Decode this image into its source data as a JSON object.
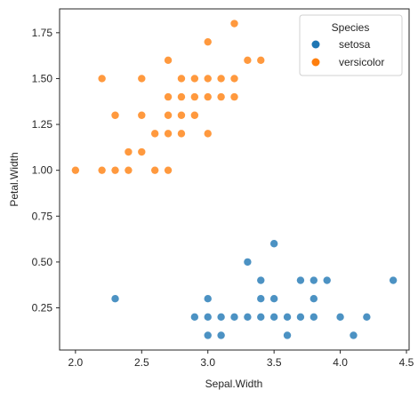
{
  "chart_data": {
    "type": "scatter",
    "xlabel": "Sepal.Width",
    "ylabel": "Petal.Width",
    "xlim": [
      1.88,
      4.52
    ],
    "ylim": [
      0.02,
      1.88
    ],
    "xticks": [
      2.0,
      2.5,
      3.0,
      3.5,
      4.0,
      4.5
    ],
    "xtick_labels": [
      "2.0",
      "2.5",
      "3.0",
      "3.5",
      "4.0",
      "4.5"
    ],
    "yticks": [
      0.25,
      0.5,
      0.75,
      1.0,
      1.25,
      1.5,
      1.75
    ],
    "ytick_labels": [
      "0.25",
      "0.50",
      "0.75",
      "1.00",
      "1.25",
      "1.50",
      "1.75"
    ],
    "grid": false,
    "legend": {
      "title": "Species",
      "placement": "top-right"
    },
    "series": [
      {
        "name": "setosa",
        "color": "#1f77b4",
        "points": [
          [
            2.3,
            0.3
          ],
          [
            2.9,
            0.2
          ],
          [
            3.0,
            0.1
          ],
          [
            3.0,
            0.2
          ],
          [
            3.0,
            0.3
          ],
          [
            3.1,
            0.1
          ],
          [
            3.1,
            0.2
          ],
          [
            3.2,
            0.2
          ],
          [
            3.3,
            0.2
          ],
          [
            3.3,
            0.5
          ],
          [
            3.4,
            0.2
          ],
          [
            3.4,
            0.3
          ],
          [
            3.4,
            0.4
          ],
          [
            3.5,
            0.2
          ],
          [
            3.5,
            0.3
          ],
          [
            3.5,
            0.6
          ],
          [
            3.6,
            0.1
          ],
          [
            3.6,
            0.2
          ],
          [
            3.7,
            0.2
          ],
          [
            3.7,
            0.4
          ],
          [
            3.8,
            0.2
          ],
          [
            3.8,
            0.3
          ],
          [
            3.8,
            0.4
          ],
          [
            3.9,
            0.4
          ],
          [
            4.0,
            0.2
          ],
          [
            4.1,
            0.1
          ],
          [
            4.2,
            0.2
          ],
          [
            4.4,
            0.4
          ]
        ]
      },
      {
        "name": "versicolor",
        "color": "#ff7f0e",
        "points": [
          [
            2.0,
            1.0
          ],
          [
            2.2,
            1.0
          ],
          [
            2.2,
            1.5
          ],
          [
            2.3,
            1.0
          ],
          [
            2.3,
            1.3
          ],
          [
            2.4,
            1.0
          ],
          [
            2.4,
            1.1
          ],
          [
            2.5,
            1.1
          ],
          [
            2.5,
            1.3
          ],
          [
            2.5,
            1.5
          ],
          [
            2.6,
            1.0
          ],
          [
            2.6,
            1.2
          ],
          [
            2.7,
            1.0
          ],
          [
            2.7,
            1.2
          ],
          [
            2.7,
            1.3
          ],
          [
            2.7,
            1.4
          ],
          [
            2.7,
            1.6
          ],
          [
            2.8,
            1.2
          ],
          [
            2.8,
            1.3
          ],
          [
            2.8,
            1.4
          ],
          [
            2.8,
            1.5
          ],
          [
            2.9,
            1.3
          ],
          [
            2.9,
            1.4
          ],
          [
            2.9,
            1.5
          ],
          [
            3.0,
            1.2
          ],
          [
            3.0,
            1.4
          ],
          [
            3.0,
            1.5
          ],
          [
            3.0,
            1.7
          ],
          [
            3.1,
            1.4
          ],
          [
            3.1,
            1.5
          ],
          [
            3.2,
            1.4
          ],
          [
            3.2,
            1.5
          ],
          [
            3.2,
            1.8
          ],
          [
            3.3,
            1.6
          ],
          [
            3.4,
            1.6
          ]
        ]
      }
    ]
  }
}
